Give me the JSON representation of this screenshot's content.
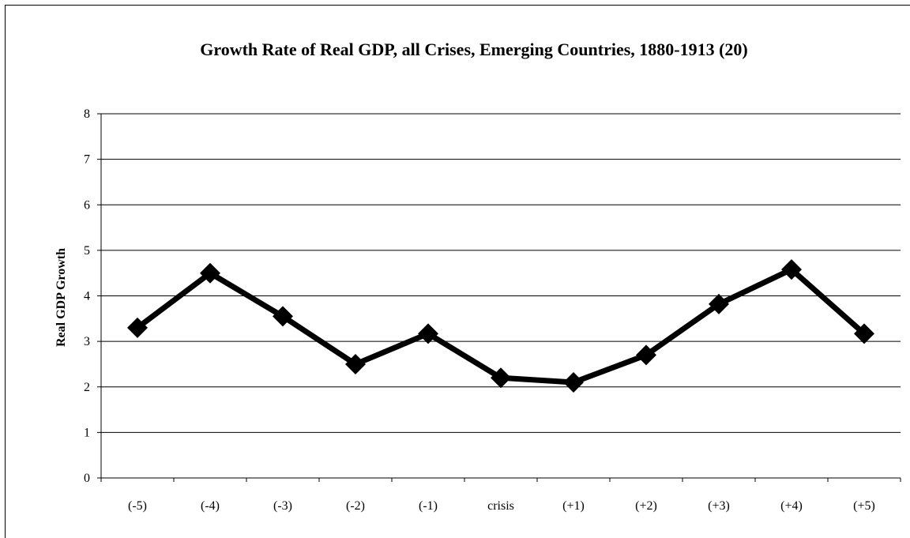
{
  "chart_data": {
    "type": "line",
    "title": "Growth Rate of Real GDP, all Crises, Emerging Countries, 1880-1913 (20)",
    "xlabel": "",
    "ylabel": "Real GDP Growth",
    "categories": [
      "(-5)",
      "(-4)",
      "(-3)",
      "(-2)",
      "(-1)",
      "crisis",
      "(+1)",
      "(+2)",
      "(+3)",
      "(+4)",
      "(+5)"
    ],
    "series": [
      {
        "values": [
          3.3,
          4.5,
          3.55,
          2.5,
          3.17,
          2.2,
          2.1,
          2.7,
          3.82,
          4.58,
          3.17
        ]
      }
    ],
    "ylim": [
      0,
      8
    ],
    "yticks": [
      0,
      1,
      2,
      3,
      4,
      5,
      6,
      7,
      8
    ],
    "grid": "horizontal",
    "legend": "none",
    "marker": "diamond",
    "line_color": "#000000"
  }
}
